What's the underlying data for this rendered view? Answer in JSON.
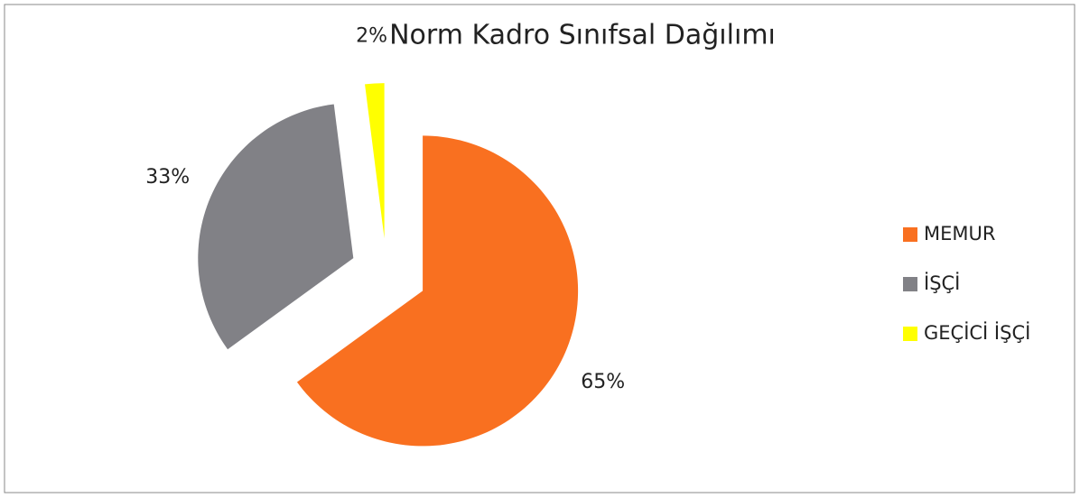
{
  "chart_data": {
    "type": "pie",
    "title": "Norm Kadro Sınıfsal Dağılımı",
    "categories": [
      "MEMUR",
      "İŞÇİ",
      "GEÇİCİ İŞÇİ"
    ],
    "values": [
      65,
      33,
      2
    ],
    "value_labels": [
      "65%",
      "33%",
      "2%"
    ],
    "colors": [
      "#f97020",
      "#818186",
      "#ffff00"
    ],
    "legend": "right"
  }
}
